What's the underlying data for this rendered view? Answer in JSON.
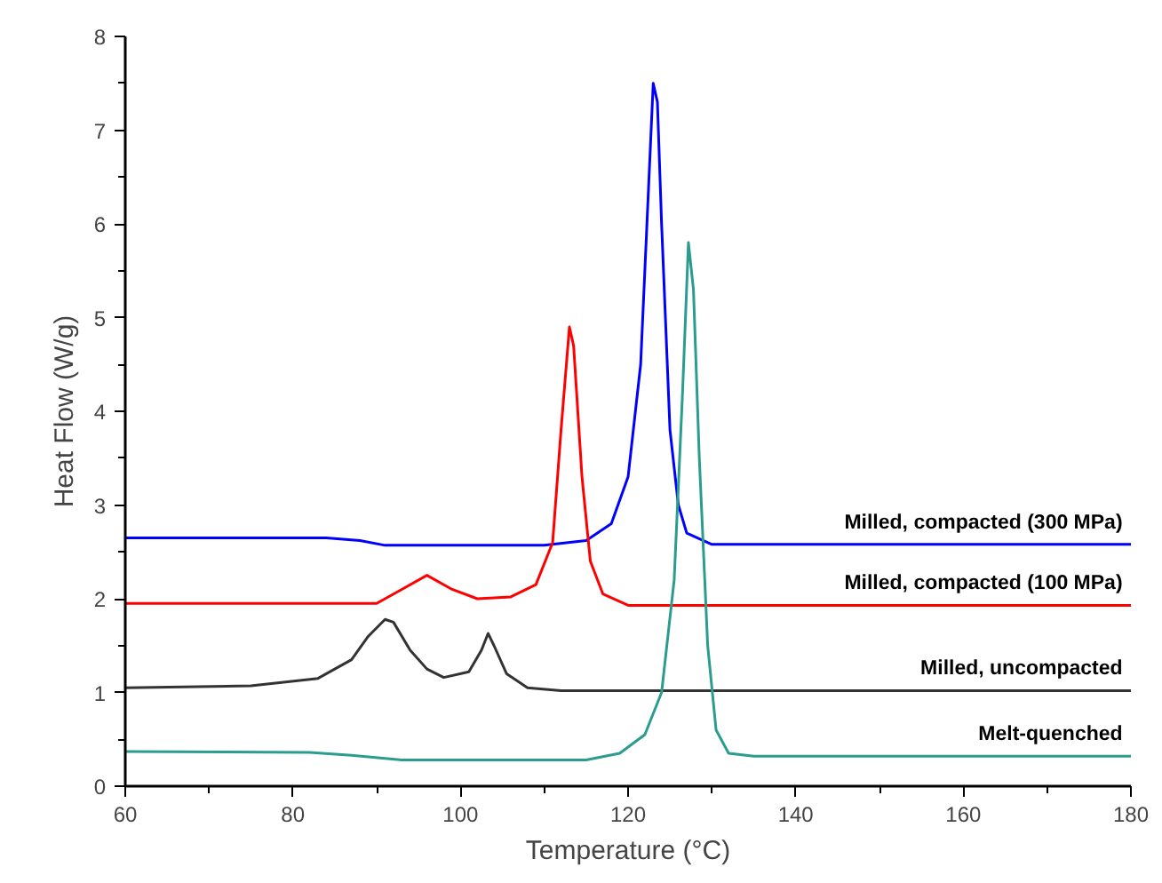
{
  "chart_data": {
    "type": "line",
    "xlabel": "Temperature (°C)",
    "ylabel": "Heat Flow (W/g)",
    "xlim": [
      60,
      180
    ],
    "ylim": [
      0,
      8
    ],
    "xticks": [
      60,
      80,
      100,
      120,
      140,
      160,
      180
    ],
    "yticks": [
      0,
      1,
      2,
      3,
      4,
      5,
      6,
      7,
      8
    ],
    "grid": false,
    "legend": false,
    "marker": "none",
    "line_style": "solid",
    "series": [
      {
        "name": "Milled, compacted (300 MPa)",
        "color": "#0000ff",
        "x": [
          60,
          84,
          88,
          91,
          100,
          110,
          115,
          118,
          120,
          121.5,
          122.5,
          123,
          123.5,
          124,
          125,
          126,
          127,
          130,
          180
        ],
        "values": [
          2.65,
          2.65,
          2.62,
          2.57,
          2.57,
          2.57,
          2.62,
          2.8,
          3.3,
          4.5,
          6.5,
          7.5,
          7.3,
          6.0,
          3.8,
          3.0,
          2.7,
          2.58,
          2.58
        ]
      },
      {
        "name": "Milled, compacted (100 MPa)",
        "color": "#ff0000",
        "x": [
          60,
          90,
          93,
          96,
          99,
          102,
          106,
          109,
          111,
          112,
          113,
          113.5,
          114.5,
          115.5,
          117,
          120,
          180
        ],
        "values": [
          1.95,
          1.95,
          2.1,
          2.25,
          2.1,
          2.0,
          2.02,
          2.15,
          2.6,
          3.8,
          4.9,
          4.7,
          3.3,
          2.4,
          2.05,
          1.93,
          1.93
        ]
      },
      {
        "name": "Milled, uncompacted",
        "color": "#333333",
        "x": [
          60,
          75,
          83,
          87,
          89,
          91,
          92,
          94,
          96,
          98,
          101,
          102.5,
          103.3,
          104,
          105.5,
          108,
          112,
          180
        ],
        "values": [
          1.05,
          1.07,
          1.15,
          1.35,
          1.6,
          1.78,
          1.75,
          1.45,
          1.25,
          1.16,
          1.22,
          1.45,
          1.63,
          1.5,
          1.2,
          1.05,
          1.02,
          1.02
        ]
      },
      {
        "name": "Melt-quenched",
        "color": "#2a9d8f",
        "x": [
          60,
          82,
          87,
          93,
          115,
          119,
          122,
          124,
          125.5,
          126.5,
          127.2,
          127.8,
          128.5,
          129.5,
          130.5,
          132,
          135,
          180
        ],
        "values": [
          0.37,
          0.36,
          0.33,
          0.28,
          0.28,
          0.35,
          0.55,
          1.0,
          2.2,
          4.2,
          5.8,
          5.3,
          3.5,
          1.5,
          0.6,
          0.35,
          0.32,
          0.32
        ]
      }
    ]
  }
}
